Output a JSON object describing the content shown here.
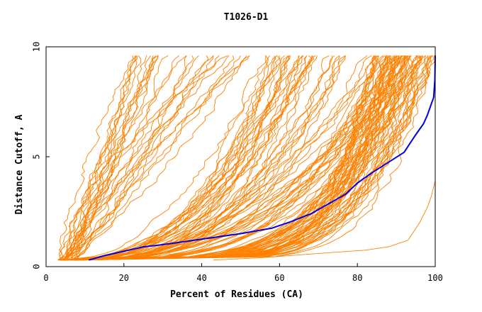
{
  "chart_data": {
    "type": "line",
    "title": "T1026-D1",
    "xlabel": "Percent of Residues (CA)",
    "ylabel": "Distance Cutoff, A",
    "xlim": [
      0,
      100
    ],
    "ylim": [
      0,
      10
    ],
    "x_ticks": [
      "0",
      "20",
      "40",
      "60",
      "80",
      "100"
    ],
    "y_ticks": [
      "0",
      "5",
      "10"
    ],
    "grid": false,
    "legend": "none",
    "colors": {
      "others": "#ff8000",
      "highlight": "#0000e0",
      "frame": "#000000"
    },
    "highlight_series": [
      [
        11,
        0.3
      ],
      [
        15,
        0.5
      ],
      [
        20,
        0.7
      ],
      [
        25,
        0.9
      ],
      [
        30,
        1.0
      ],
      [
        40,
        1.25
      ],
      [
        50,
        1.5
      ],
      [
        58,
        1.75
      ],
      [
        63,
        2.05
      ],
      [
        68,
        2.4
      ],
      [
        72,
        2.8
      ],
      [
        77,
        3.3
      ],
      [
        80,
        3.8
      ],
      [
        84,
        4.3
      ],
      [
        88,
        4.75
      ],
      [
        92,
        5.2
      ],
      [
        95,
        6.0
      ],
      [
        97,
        6.5
      ],
      [
        98,
        6.9
      ],
      [
        99,
        7.4
      ],
      [
        99.6,
        7.7
      ],
      [
        99.9,
        8.5
      ],
      [
        100,
        9.6
      ]
    ],
    "group_steep": {
      "start_x": [
        3,
        8
      ],
      "end_x": [
        21,
        54
      ],
      "bend": [
        0.6,
        1.6
      ],
      "count": 30
    },
    "group_mid": {
      "start_x": [
        3,
        9
      ],
      "end_x": [
        56,
        100
      ],
      "bend": [
        2.0,
        3.6
      ],
      "count": 55
    },
    "group_dense": {
      "start_x": [
        3,
        10
      ],
      "end_x": [
        84,
        100
      ],
      "bend": [
        3.6,
        7.5
      ],
      "count": 60
    },
    "outlier_series": [
      [
        43,
        0.3
      ],
      [
        55,
        0.4
      ],
      [
        70,
        0.6
      ],
      [
        82,
        0.75
      ],
      [
        88,
        0.9
      ],
      [
        93,
        1.2
      ],
      [
        96,
        2.0
      ],
      [
        98,
        2.7
      ],
      [
        99,
        3.2
      ],
      [
        100,
        3.9
      ],
      [
        100,
        9.6
      ]
    ]
  }
}
